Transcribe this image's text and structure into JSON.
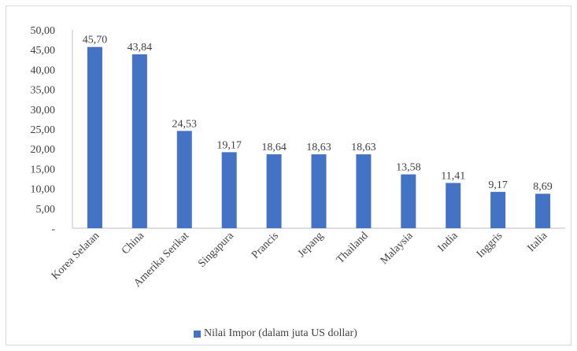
{
  "chart_data": {
    "type": "bar",
    "categories": [
      "Korea Selatan",
      "China",
      "Amerika Serikat",
      "Singapura",
      "Prancis",
      "Jepang",
      "Thailand",
      "Malaysia",
      "India",
      "Inggris",
      "Italia"
    ],
    "series": [
      {
        "name": "Nilai Impor (dalam juta US dollar)",
        "values": [
          45.7,
          43.84,
          24.53,
          19.17,
          18.64,
          18.63,
          18.63,
          13.58,
          11.41,
          9.17,
          8.69
        ],
        "labels": [
          "45,70",
          "43,84",
          "24,53",
          "19,17",
          "18,64",
          "18,63",
          "18,63",
          "13,58",
          "11,41",
          "9,17",
          "8,69"
        ],
        "color": "#4472c4"
      }
    ],
    "ylim": [
      0,
      50
    ],
    "yticks": [
      0,
      5,
      10,
      15,
      20,
      25,
      30,
      35,
      40,
      45,
      50
    ],
    "ytick_labels": [
      "-",
      "5,00",
      "10,00",
      "15,00",
      "20,00",
      "25,00",
      "30,00",
      "35,00",
      "40,00",
      "45,00",
      "50,00"
    ],
    "grid": false,
    "legend_position": "bottom"
  }
}
